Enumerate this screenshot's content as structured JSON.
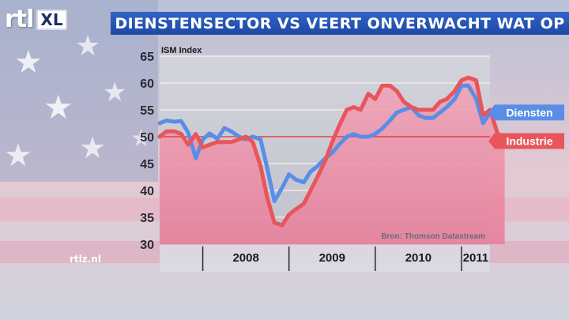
{
  "brand": {
    "logo_rtl": "rtl",
    "logo_xl": "XL",
    "site": "rtlz.nl"
  },
  "title": "DIENSTENSECTOR VS VEERT ONVERWACHT WAT OP",
  "colors": {
    "title_bar": "#2a5cc0",
    "diensten": "#5a8ee6",
    "industrie": "#e8555b",
    "plot_bg": "#c4c4ce",
    "ref_line": "#d9444a"
  },
  "chart_data": {
    "type": "line",
    "ylabel": "ISM Index",
    "ylim": [
      30,
      65
    ],
    "yticks": [
      30,
      35,
      40,
      45,
      50,
      55,
      60,
      65
    ],
    "x_year_labels": [
      "2008",
      "2009",
      "2010",
      "2011"
    ],
    "x_range_years": [
      2007.5,
      2011.33
    ],
    "grid": "horizontal",
    "reference_line": 50,
    "source": "Bron: Thomson Datastream",
    "series": [
      {
        "name": "Diensten",
        "points": [
          [
            2007.5,
            52.5
          ],
          [
            2007.58,
            53.0
          ],
          [
            2007.67,
            52.8
          ],
          [
            2007.75,
            52.9
          ],
          [
            2007.83,
            50.8
          ],
          [
            2007.92,
            46.0
          ],
          [
            2008.0,
            49.5
          ],
          [
            2008.08,
            50.6
          ],
          [
            2008.17,
            49.6
          ],
          [
            2008.25,
            51.6
          ],
          [
            2008.33,
            51.0
          ],
          [
            2008.42,
            50.0
          ],
          [
            2008.5,
            49.5
          ],
          [
            2008.58,
            50.0
          ],
          [
            2008.67,
            49.5
          ],
          [
            2008.75,
            44.0
          ],
          [
            2008.83,
            38.0
          ],
          [
            2008.92,
            40.5
          ],
          [
            2009.0,
            43.0
          ],
          [
            2009.08,
            42.0
          ],
          [
            2009.17,
            41.5
          ],
          [
            2009.25,
            43.5
          ],
          [
            2009.33,
            44.5
          ],
          [
            2009.42,
            46.0
          ],
          [
            2009.5,
            47.0
          ],
          [
            2009.58,
            48.5
          ],
          [
            2009.67,
            50.0
          ],
          [
            2009.75,
            50.5
          ],
          [
            2009.83,
            50.0
          ],
          [
            2009.92,
            50.0
          ],
          [
            2010.0,
            50.5
          ],
          [
            2010.08,
            51.5
          ],
          [
            2010.17,
            53.0
          ],
          [
            2010.25,
            54.5
          ],
          [
            2010.33,
            55.0
          ],
          [
            2010.42,
            55.5
          ],
          [
            2010.5,
            54.0
          ],
          [
            2010.58,
            53.5
          ],
          [
            2010.67,
            53.5
          ],
          [
            2010.75,
            54.5
          ],
          [
            2010.83,
            55.5
          ],
          [
            2010.92,
            57.0
          ],
          [
            2011.0,
            59.5
          ],
          [
            2011.08,
            59.5
          ],
          [
            2011.17,
            57.0
          ],
          [
            2011.25,
            52.5
          ],
          [
            2011.33,
            54.5
          ]
        ]
      },
      {
        "name": "Industrie",
        "points": [
          [
            2007.5,
            50.0
          ],
          [
            2007.58,
            51.0
          ],
          [
            2007.67,
            51.0
          ],
          [
            2007.75,
            50.5
          ],
          [
            2007.83,
            48.5
          ],
          [
            2007.92,
            50.5
          ],
          [
            2008.0,
            48.0
          ],
          [
            2008.08,
            48.5
          ],
          [
            2008.17,
            49.0
          ],
          [
            2008.25,
            49.0
          ],
          [
            2008.33,
            49.0
          ],
          [
            2008.42,
            49.5
          ],
          [
            2008.5,
            50.0
          ],
          [
            2008.58,
            49.0
          ],
          [
            2008.67,
            44.5
          ],
          [
            2008.75,
            38.5
          ],
          [
            2008.83,
            34.0
          ],
          [
            2008.92,
            33.5
          ],
          [
            2009.0,
            35.5
          ],
          [
            2009.08,
            36.5
          ],
          [
            2009.17,
            37.5
          ],
          [
            2009.25,
            40.0
          ],
          [
            2009.33,
            42.5
          ],
          [
            2009.42,
            45.5
          ],
          [
            2009.5,
            49.0
          ],
          [
            2009.58,
            52.0
          ],
          [
            2009.67,
            55.0
          ],
          [
            2009.75,
            55.5
          ],
          [
            2009.83,
            55.0
          ],
          [
            2009.92,
            58.0
          ],
          [
            2010.0,
            57.0
          ],
          [
            2010.08,
            59.5
          ],
          [
            2010.17,
            59.5
          ],
          [
            2010.25,
            58.5
          ],
          [
            2010.33,
            56.5
          ],
          [
            2010.42,
            55.5
          ],
          [
            2010.5,
            55.0
          ],
          [
            2010.58,
            55.0
          ],
          [
            2010.67,
            55.0
          ],
          [
            2010.75,
            56.5
          ],
          [
            2010.83,
            57.0
          ],
          [
            2010.92,
            58.5
          ],
          [
            2011.0,
            60.5
          ],
          [
            2011.08,
            61.0
          ],
          [
            2011.17,
            60.5
          ],
          [
            2011.25,
            54.0
          ],
          [
            2011.33,
            55.0
          ],
          [
            2011.42,
            50.5
          ],
          [
            2011.5,
            50.0
          ]
        ]
      }
    ]
  }
}
